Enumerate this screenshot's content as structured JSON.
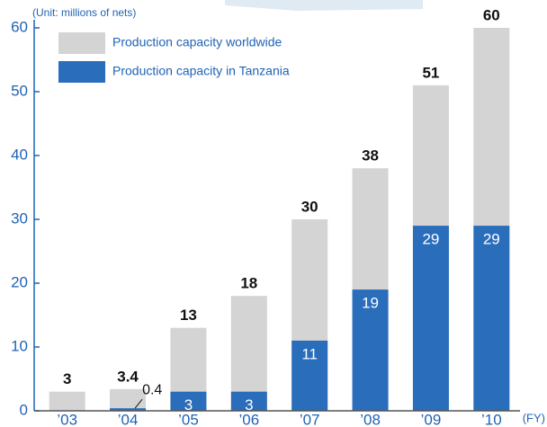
{
  "chart_data": {
    "type": "bar",
    "unit_label": "(Unit: millions of nets)",
    "x_axis_label": "(FY)",
    "categories": [
      "’03",
      "’04",
      "’05",
      "’06",
      "’07",
      "’08",
      "’09",
      "’10"
    ],
    "series": [
      {
        "name": "Production capacity worldwide",
        "color": "#d4d4d4",
        "values": [
          3,
          3.4,
          13,
          18,
          30,
          38,
          51,
          60
        ]
      },
      {
        "name": "Production capacity in Tanzania",
        "color": "#2a6dbb",
        "values": [
          null,
          0.4,
          3,
          3,
          11,
          19,
          29,
          29
        ]
      }
    ],
    "ylim": [
      0,
      60
    ],
    "yticks": [
      0,
      10,
      20,
      30,
      40,
      50,
      60
    ],
    "axis_color": "#1f63b5"
  }
}
